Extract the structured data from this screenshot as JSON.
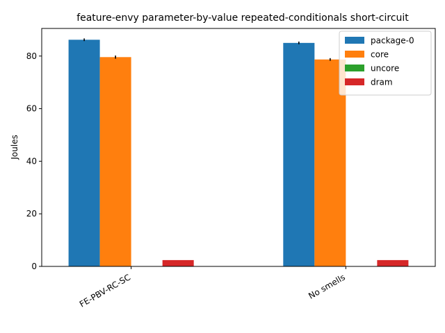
{
  "chart_data": {
    "type": "bar",
    "title": "feature-envy parameter-by-value repeated-conditionals short-circuit",
    "xlabel": "",
    "ylabel": "Joules",
    "categories": [
      "FE-PBV-RC-SC",
      "No smells"
    ],
    "series": [
      {
        "name": "package-0",
        "color": "#1f77b4",
        "values": [
          86.2,
          85.0
        ],
        "errors": [
          0.5,
          0.5
        ]
      },
      {
        "name": "core",
        "color": "#ff7f0e",
        "values": [
          79.6,
          78.7
        ],
        "errors": [
          0.6,
          0.5
        ]
      },
      {
        "name": "uncore",
        "color": "#2ca02c",
        "values": [
          0.0,
          0.0
        ],
        "errors": [
          0,
          0
        ]
      },
      {
        "name": "dram",
        "color": "#d62728",
        "values": [
          2.4,
          2.4
        ],
        "errors": [
          0,
          0
        ]
      }
    ],
    "ylim": [
      0,
      90.5
    ],
    "yticks": [
      0,
      20,
      40,
      60,
      80
    ],
    "grid": false,
    "legend_position": "top-right"
  }
}
